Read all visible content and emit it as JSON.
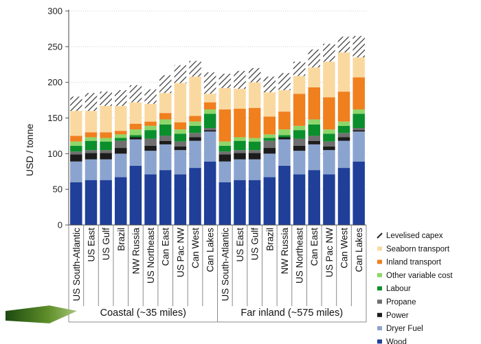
{
  "chart_data": {
    "type": "bar",
    "stacked": true,
    "ylabel": "USD / tonne",
    "ylim": [
      0,
      300
    ],
    "yticks": [
      0,
      50,
      100,
      150,
      200,
      250,
      300
    ],
    "grid": true,
    "legend_position": "right",
    "groups": [
      {
        "label": "Coastal (~35 miles)",
        "start": 0,
        "count": 10
      },
      {
        "label": "Far inland (~575 miles)",
        "start": 10,
        "count": 10
      }
    ],
    "categories": [
      "US South-Atlantic",
      "US East",
      "US Gulf",
      "Brazil",
      "NW Russia",
      "US Northeast",
      "Can East",
      "US Pac NW",
      "Can West",
      "Can Lakes",
      "US South-Atlantic",
      "US East",
      "US Gulf",
      "Brazil",
      "NW Russia",
      "US Northeast",
      "Can East",
      "US Pac NW",
      "Can West",
      "Can Lakes"
    ],
    "series": [
      {
        "name": "Wood",
        "color": "#1f3f99",
        "values": [
          60,
          63,
          63,
          67,
          83,
          71,
          77,
          71,
          80,
          89,
          60,
          63,
          63,
          67,
          83,
          71,
          77,
          71,
          80,
          89
        ]
      },
      {
        "name": "Dryer Fuel",
        "color": "#8ba4cf",
        "values": [
          29,
          29,
          29,
          33,
          37,
          33,
          36,
          34,
          38,
          42,
          29,
          29,
          29,
          33,
          37,
          33,
          36,
          34,
          38,
          42
        ]
      },
      {
        "name": "Power",
        "color": "#1c1c1c",
        "values": [
          10,
          9,
          9,
          8,
          3,
          7,
          5,
          5,
          5,
          2,
          10,
          9,
          9,
          8,
          3,
          7,
          5,
          5,
          5,
          2
        ]
      },
      {
        "name": "Propane",
        "color": "#6f6f6f",
        "values": [
          4,
          4,
          4,
          10,
          0,
          10,
          7,
          7,
          6,
          3,
          4,
          4,
          4,
          10,
          0,
          10,
          7,
          7,
          6,
          3
        ]
      },
      {
        "name": "Labour",
        "color": "#0b8f2c",
        "values": [
          8,
          13,
          12,
          4,
          3,
          12,
          16,
          11,
          10,
          20,
          8,
          13,
          12,
          4,
          3,
          12,
          16,
          11,
          10,
          20
        ]
      },
      {
        "name": "Other variable costs",
        "color": "#8ed66a",
        "values": [
          6,
          5,
          5,
          5,
          8,
          6,
          7,
          6,
          6,
          6,
          6,
          5,
          5,
          5,
          8,
          6,
          7,
          6,
          6,
          6
        ]
      },
      {
        "name": "Inland transport",
        "color": "#f07f1e",
        "values": [
          8,
          7,
          8,
          5,
          8,
          6,
          9,
          10,
          8,
          10,
          45,
          40,
          42,
          25,
          25,
          45,
          45,
          45,
          42,
          45
        ]
      },
      {
        "name": "Seaborn transport",
        "color": "#fad9a0",
        "values": [
          35,
          30,
          37,
          35,
          30,
          25,
          28,
          55,
          55,
          12,
          30,
          28,
          36,
          34,
          30,
          25,
          28,
          50,
          55,
          28
        ]
      },
      {
        "name": "Levelised capex",
        "color": "#ffffff",
        "hatch": true,
        "values": [
          20,
          25,
          20,
          22,
          24,
          20,
          25,
          25,
          22,
          30,
          20,
          25,
          20,
          22,
          24,
          20,
          25,
          25,
          22,
          30
        ]
      }
    ],
    "legend": [
      "Levelised capex",
      "Seaborn transport",
      "Inland transport",
      "Other variable cost",
      "Labour",
      "Propane",
      "Power",
      "Dryer Fuel",
      "Wood"
    ]
  }
}
